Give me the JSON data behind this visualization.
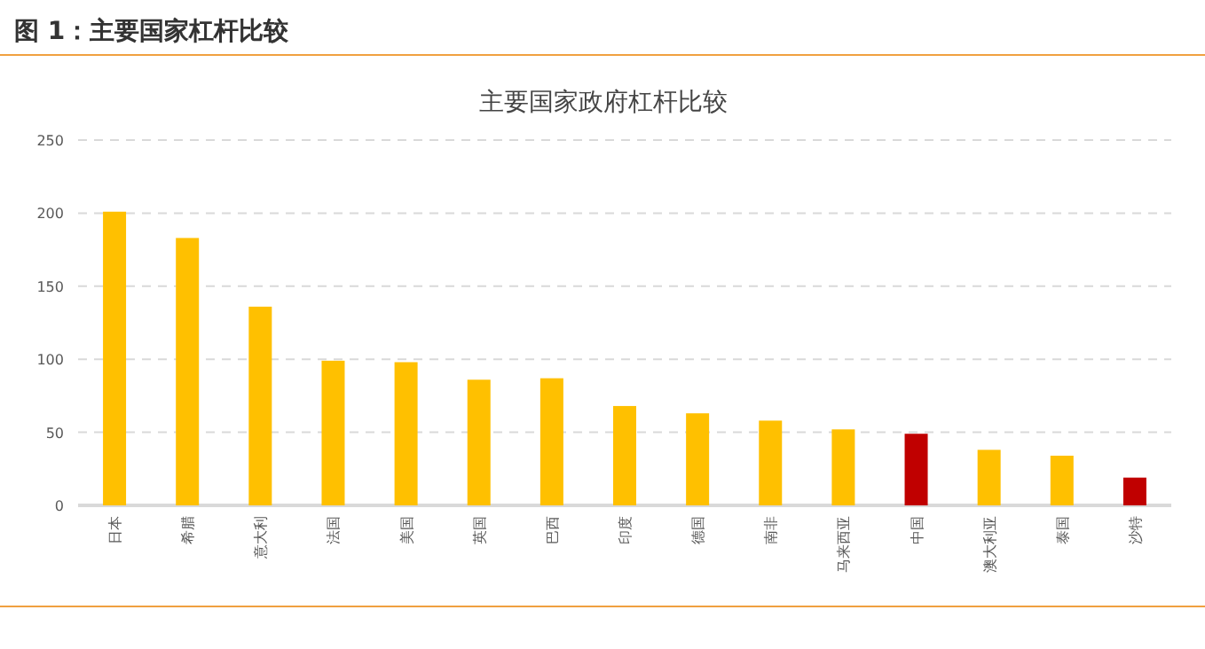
{
  "chart_data": {
    "type": "bar",
    "title": "图 1：主要国家杠杆比较",
    "subtitle": "主要国家政府杠杆比较",
    "categories": [
      "日本",
      "希腊",
      "意大利",
      "法国",
      "美国",
      "英国",
      "巴西",
      "印度",
      "德国",
      "南非",
      "马来西亚",
      "中国",
      "澳大利亚",
      "泰国",
      "沙特"
    ],
    "values": [
      201,
      183,
      136,
      99,
      98,
      86,
      87,
      68,
      63,
      58,
      52,
      49,
      38,
      34,
      19
    ],
    "colors": [
      "#ffc000",
      "#ffc000",
      "#ffc000",
      "#ffc000",
      "#ffc000",
      "#ffc000",
      "#ffc000",
      "#ffc000",
      "#ffc000",
      "#ffc000",
      "#ffc000",
      "#c00000",
      "#ffc000",
      "#ffc000",
      "#c00000"
    ],
    "ylim": [
      0,
      250
    ],
    "yticks": [
      0,
      50,
      100,
      150,
      200,
      250
    ],
    "grid": "y"
  }
}
